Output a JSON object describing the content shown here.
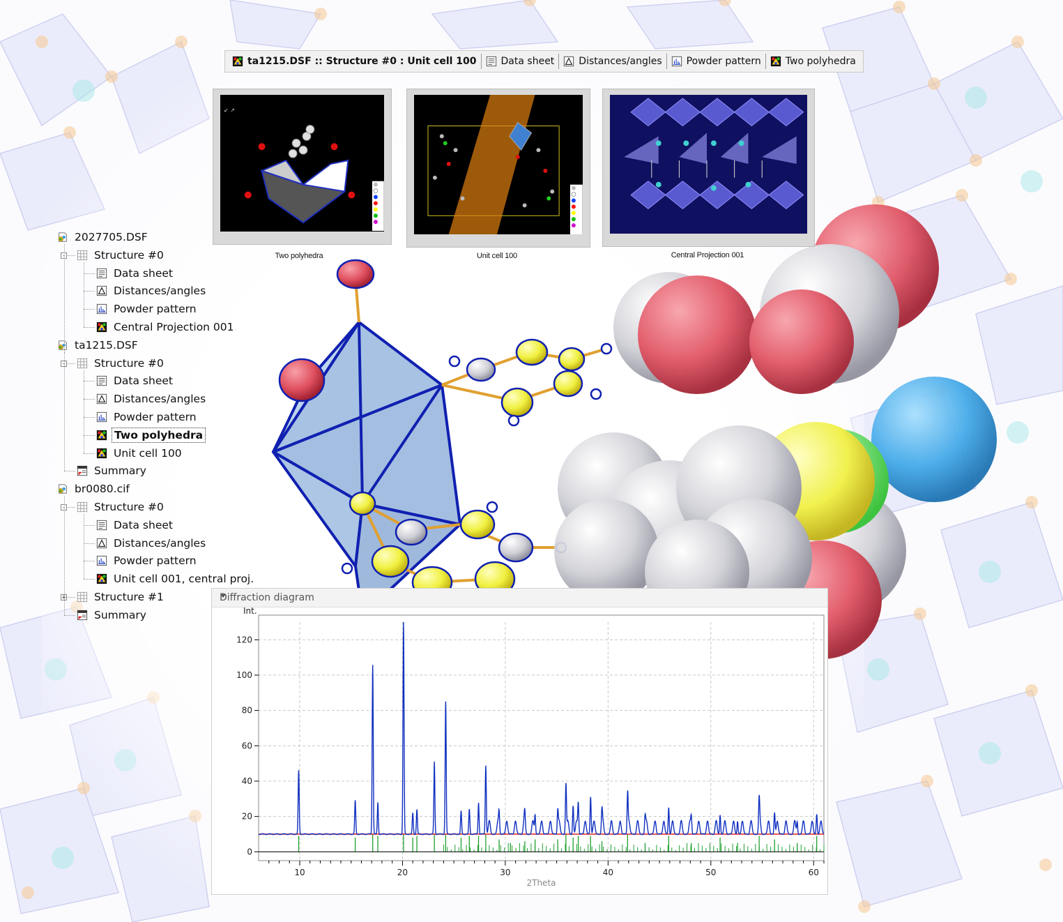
{
  "tabs": [
    {
      "label": "ta1215.DSF :: Structure #0 : Unit cell 100",
      "icon": "crystal-structure-icon",
      "active": true
    },
    {
      "label": "Data sheet",
      "icon": "data-sheet-icon",
      "active": false
    },
    {
      "label": "Distances/angles",
      "icon": "triangle-icon",
      "active": false
    },
    {
      "label": "Powder pattern",
      "icon": "powder-pattern-icon",
      "active": false
    },
    {
      "label": "Two polyhedra",
      "icon": "crystal-structure-icon",
      "active": false
    }
  ],
  "thumbnails": [
    {
      "caption": "Two polyhedra",
      "legend": [
        "C",
        "H",
        "N",
        "O",
        "S",
        "Mo",
        "I"
      ]
    },
    {
      "caption": "Unit cell 100",
      "legend": [
        "C",
        "H",
        "N",
        "O",
        "S",
        "Mo",
        "I"
      ]
    },
    {
      "caption": "Central Projection 001"
    }
  ],
  "tree": [
    {
      "label": "2027705.DSF",
      "icon": "file-icon",
      "level": 0
    },
    {
      "label": "Structure #0",
      "icon": "grid-icon",
      "level": 1,
      "expander": "-"
    },
    {
      "label": "Data sheet",
      "icon": "data-sheet-icon",
      "level": 2
    },
    {
      "label": "Distances/angles",
      "icon": "triangle-icon",
      "level": 2
    },
    {
      "label": "Powder pattern",
      "icon": "powder-pattern-icon",
      "level": 2
    },
    {
      "label": "Central Projection 001",
      "icon": "crystal-structure-icon",
      "level": 2
    },
    {
      "label": "ta1215.DSF",
      "icon": "file-icon",
      "level": 0
    },
    {
      "label": "Structure #0",
      "icon": "grid-icon",
      "level": 1,
      "expander": "-"
    },
    {
      "label": "Data sheet",
      "icon": "data-sheet-icon",
      "level": 2
    },
    {
      "label": "Distances/angles",
      "icon": "triangle-icon",
      "level": 2
    },
    {
      "label": "Powder pattern",
      "icon": "powder-pattern-icon",
      "level": 2
    },
    {
      "label": "Two polyhedra",
      "icon": "crystal-structure-icon",
      "level": 2,
      "selected": true
    },
    {
      "label": "Unit cell 100",
      "icon": "crystal-structure-icon",
      "level": 2
    },
    {
      "label": "Summary",
      "icon": "summary-icon",
      "level": 1
    },
    {
      "label": "br0080.cif",
      "icon": "file-icon",
      "level": 0
    },
    {
      "label": "Structure #0",
      "icon": "grid-icon",
      "level": 1,
      "expander": "-"
    },
    {
      "label": "Data sheet",
      "icon": "data-sheet-icon",
      "level": 2
    },
    {
      "label": "Distances/angles",
      "icon": "triangle-icon",
      "level": 2
    },
    {
      "label": "Powder pattern",
      "icon": "powder-pattern-icon",
      "level": 2
    },
    {
      "label": "Unit cell 001, central proj.",
      "icon": "crystal-structure-icon",
      "level": 2
    },
    {
      "label": "Structure #1",
      "icon": "grid-icon",
      "level": 1,
      "expander": "+"
    },
    {
      "label": "Summary",
      "icon": "summary-icon",
      "level": 1
    }
  ],
  "diffraction": {
    "title": "Diffraction diagram",
    "dropdown_icon": "chevron-down-icon"
  },
  "chart_data": {
    "type": "line",
    "title": "",
    "xlabel": "2Theta",
    "ylabel": "Int.",
    "xlim": [
      6,
      61
    ],
    "ylim": [
      -5,
      130
    ],
    "xticks": [
      10,
      20,
      30,
      40,
      50,
      60
    ],
    "yticks": [
      0,
      20,
      40,
      60,
      80,
      100,
      120
    ],
    "grid": true,
    "series": [
      {
        "name": "",
        "color": "#1030c0",
        "baseline": 10,
        "peaks": [
          [
            9.9,
            46
          ],
          [
            15.4,
            29
          ],
          [
            17.1,
            106
          ],
          [
            17.6,
            28
          ],
          [
            20.1,
            130
          ],
          [
            21.0,
            22
          ],
          [
            21.4,
            24
          ],
          [
            23.1,
            51
          ],
          [
            24.2,
            85
          ],
          [
            25.7,
            23
          ],
          [
            26.5,
            24
          ],
          [
            27.4,
            28
          ],
          [
            28.1,
            49
          ],
          [
            29.4,
            20
          ],
          [
            31.9,
            18
          ],
          [
            32.9,
            21
          ],
          [
            35.1,
            22
          ],
          [
            35.9,
            38
          ],
          [
            36.6,
            26
          ],
          [
            37.1,
            27
          ],
          [
            38.3,
            31
          ],
          [
            39.4,
            20
          ],
          [
            41.9,
            32
          ],
          [
            43.6,
            18
          ],
          [
            45.9,
            25
          ],
          [
            48.1,
            18
          ],
          [
            50.9,
            21
          ],
          [
            52.6,
            17
          ],
          [
            54.7,
            26
          ],
          [
            56.2,
            22
          ],
          [
            58.4,
            17
          ],
          [
            60.3,
            21
          ]
        ]
      },
      {
        "name": "",
        "color": "#e02020",
        "baseline": 10
      },
      {
        "name": "",
        "color": "#20a030",
        "baseline": 0,
        "sticks": [
          [
            9.9,
            9
          ],
          [
            15.4,
            8
          ],
          [
            17.1,
            10
          ],
          [
            17.6,
            9
          ],
          [
            20.1,
            10
          ],
          [
            21.0,
            8
          ],
          [
            21.4,
            9
          ],
          [
            23.1,
            10
          ],
          [
            24.2,
            10
          ],
          [
            25.7,
            8
          ],
          [
            26.5,
            9
          ],
          [
            27.4,
            9
          ],
          [
            28.1,
            10
          ],
          [
            29.4,
            7
          ],
          [
            30.5,
            5
          ],
          [
            31.9,
            6
          ],
          [
            32.9,
            7
          ],
          [
            35.1,
            7
          ],
          [
            35.9,
            10
          ],
          [
            36.6,
            8
          ],
          [
            37.1,
            9
          ],
          [
            38.3,
            9
          ],
          [
            39.4,
            6
          ],
          [
            41.9,
            10
          ],
          [
            43.6,
            5
          ],
          [
            45.9,
            9
          ],
          [
            48.1,
            5
          ],
          [
            50.9,
            8
          ],
          [
            52.6,
            5
          ],
          [
            54.7,
            9
          ],
          [
            56.2,
            7
          ],
          [
            58.4,
            5
          ],
          [
            60.3,
            9
          ]
        ]
      }
    ]
  }
}
